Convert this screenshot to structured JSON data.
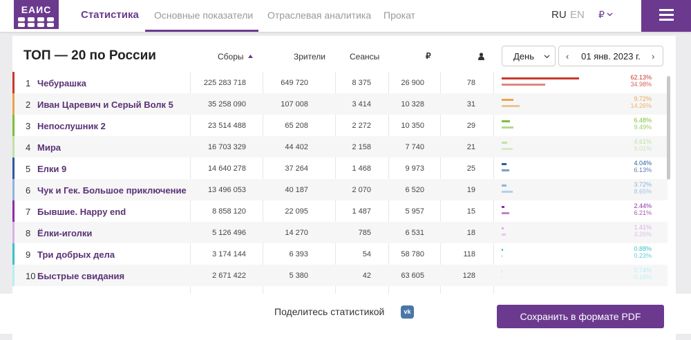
{
  "header": {
    "logo": "ЕАИС",
    "nav": [
      "Статистика",
      "Основные показатели",
      "Отраслевая аналитика",
      "Прокат"
    ],
    "lang_ru": "RU",
    "lang_en": "EN",
    "currency": "₽"
  },
  "table": {
    "title": "ТОП — 20 по России",
    "columns": [
      "Сборы",
      "Зрители",
      "Сеансы",
      "₽"
    ],
    "period": "День",
    "date": "01 янв. 2023 г.",
    "rows": [
      {
        "rank": "1",
        "title": "Чебурашка",
        "gross": "225 283 718",
        "viewers": "649 720",
        "sessions": "8 375",
        "avg_price": "26 900",
        "avg_viewers": "78",
        "share_gross": {
          "value": 62.13,
          "label": "62.13%"
        },
        "share_viewers": {
          "value": 34.98,
          "label": "34.98%"
        },
        "color": "#c8392b"
      },
      {
        "rank": "2",
        "title": "Иван Царевич и Серый Волк 5",
        "gross": "35 258 090",
        "viewers": "107 008",
        "sessions": "3 414",
        "avg_price": "10 328",
        "avg_viewers": "31",
        "share_gross": {
          "value": 9.72,
          "label": "9.72%"
        },
        "share_viewers": {
          "value": 14.26,
          "label": "14.26%"
        },
        "color": "#e8a44a"
      },
      {
        "rank": "3",
        "title": "Непослушник 2",
        "gross": "23 514 488",
        "viewers": "65 208",
        "sessions": "2 272",
        "avg_price": "10 350",
        "avg_viewers": "29",
        "share_gross": {
          "value": 6.48,
          "label": "6.48%"
        },
        "share_viewers": {
          "value": 9.49,
          "label": "9.49%"
        },
        "color": "#7cbf3c"
      },
      {
        "rank": "4",
        "title": "Мира",
        "gross": "16 703 329",
        "viewers": "44 402",
        "sessions": "2 158",
        "avg_price": "7 740",
        "avg_viewers": "21",
        "share_gross": {
          "value": 4.61,
          "label": "4.61%"
        },
        "share_viewers": {
          "value": 9.01,
          "label": "9.01%"
        },
        "color": "#bfe3a0"
      },
      {
        "rank": "5",
        "title": "Елки 9",
        "gross": "14 640 278",
        "viewers": "37 264",
        "sessions": "1 468",
        "avg_price": "9 973",
        "avg_viewers": "25",
        "share_gross": {
          "value": 4.04,
          "label": "4.04%"
        },
        "share_viewers": {
          "value": 6.13,
          "label": "6.13%"
        },
        "color": "#2c5aa0"
      },
      {
        "rank": "6",
        "title": "Чук и Гек. Большое приключение",
        "gross": "13 496 053",
        "viewers": "40 187",
        "sessions": "2 070",
        "avg_price": "6 520",
        "avg_viewers": "19",
        "share_gross": {
          "value": 3.72,
          "label": "3.72%"
        },
        "share_viewers": {
          "value": 8.65,
          "label": "8.65%"
        },
        "color": "#8db3dc"
      },
      {
        "rank": "7",
        "title": "Бывшие. Happy end",
        "gross": "8 858 120",
        "viewers": "22 095",
        "sessions": "1 487",
        "avg_price": "5 957",
        "avg_viewers": "15",
        "share_gross": {
          "value": 2.44,
          "label": "2.44%"
        },
        "share_viewers": {
          "value": 6.21,
          "label": "6.21%"
        },
        "color": "#8e2f9e"
      },
      {
        "rank": "8",
        "title": "Ёлки-иголки",
        "gross": "5 126 496",
        "viewers": "14 270",
        "sessions": "785",
        "avg_price": "6 531",
        "avg_viewers": "18",
        "share_gross": {
          "value": 1.41,
          "label": "1.41%"
        },
        "share_viewers": {
          "value": 3.26,
          "label": "3.26%"
        },
        "color": "#d5b3e0"
      },
      {
        "rank": "9",
        "title": "Три добрых дела",
        "gross": "3 174 144",
        "viewers": "6 393",
        "sessions": "54",
        "avg_price": "58 780",
        "avg_viewers": "118",
        "share_gross": {
          "value": 0.88,
          "label": "0.88%"
        },
        "share_viewers": {
          "value": 0.23,
          "label": "0.23%"
        },
        "color": "#3cc0c8"
      },
      {
        "rank": "10",
        "title": "Быстрые свидания",
        "gross": "2 671 422",
        "viewers": "5 380",
        "sessions": "42",
        "avg_price": "63 605",
        "avg_viewers": "128",
        "share_gross": {
          "value": 0.74,
          "label": "0.74%"
        },
        "share_viewers": {
          "value": 0.18,
          "label": "0.18%"
        },
        "color": "#b8eef0"
      }
    ]
  },
  "footer": {
    "share": "Поделитесь статистикой",
    "vk": "vk",
    "button": "Сохранить в формате PDF"
  }
}
